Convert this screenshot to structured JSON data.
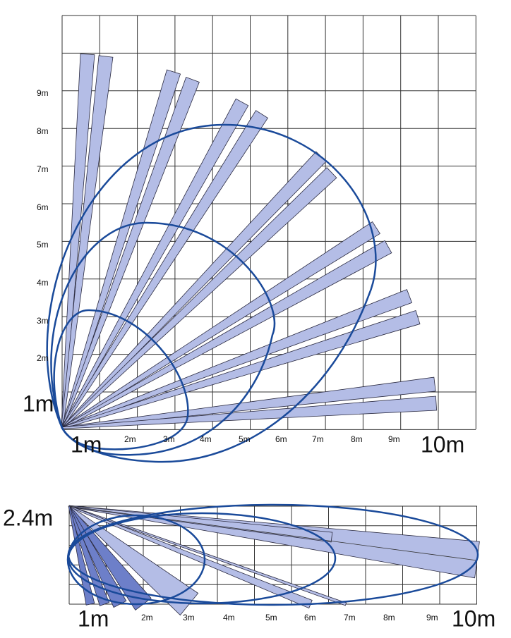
{
  "top": {
    "y_labels": [
      "9m",
      "8m",
      "7m",
      "6m",
      "5m",
      "4m",
      "3m",
      "2m",
      "1m"
    ],
    "x_labels": [
      "1m",
      "2m",
      "3m",
      "4m",
      "5m",
      "6m",
      "7m",
      "8m",
      "9m",
      "10m"
    ]
  },
  "bottom": {
    "height_label": "2.4m",
    "x_labels": [
      "1m",
      "2m",
      "3m",
      "4m",
      "5m",
      "6m",
      "7m",
      "8m",
      "9m",
      "10m"
    ]
  }
}
